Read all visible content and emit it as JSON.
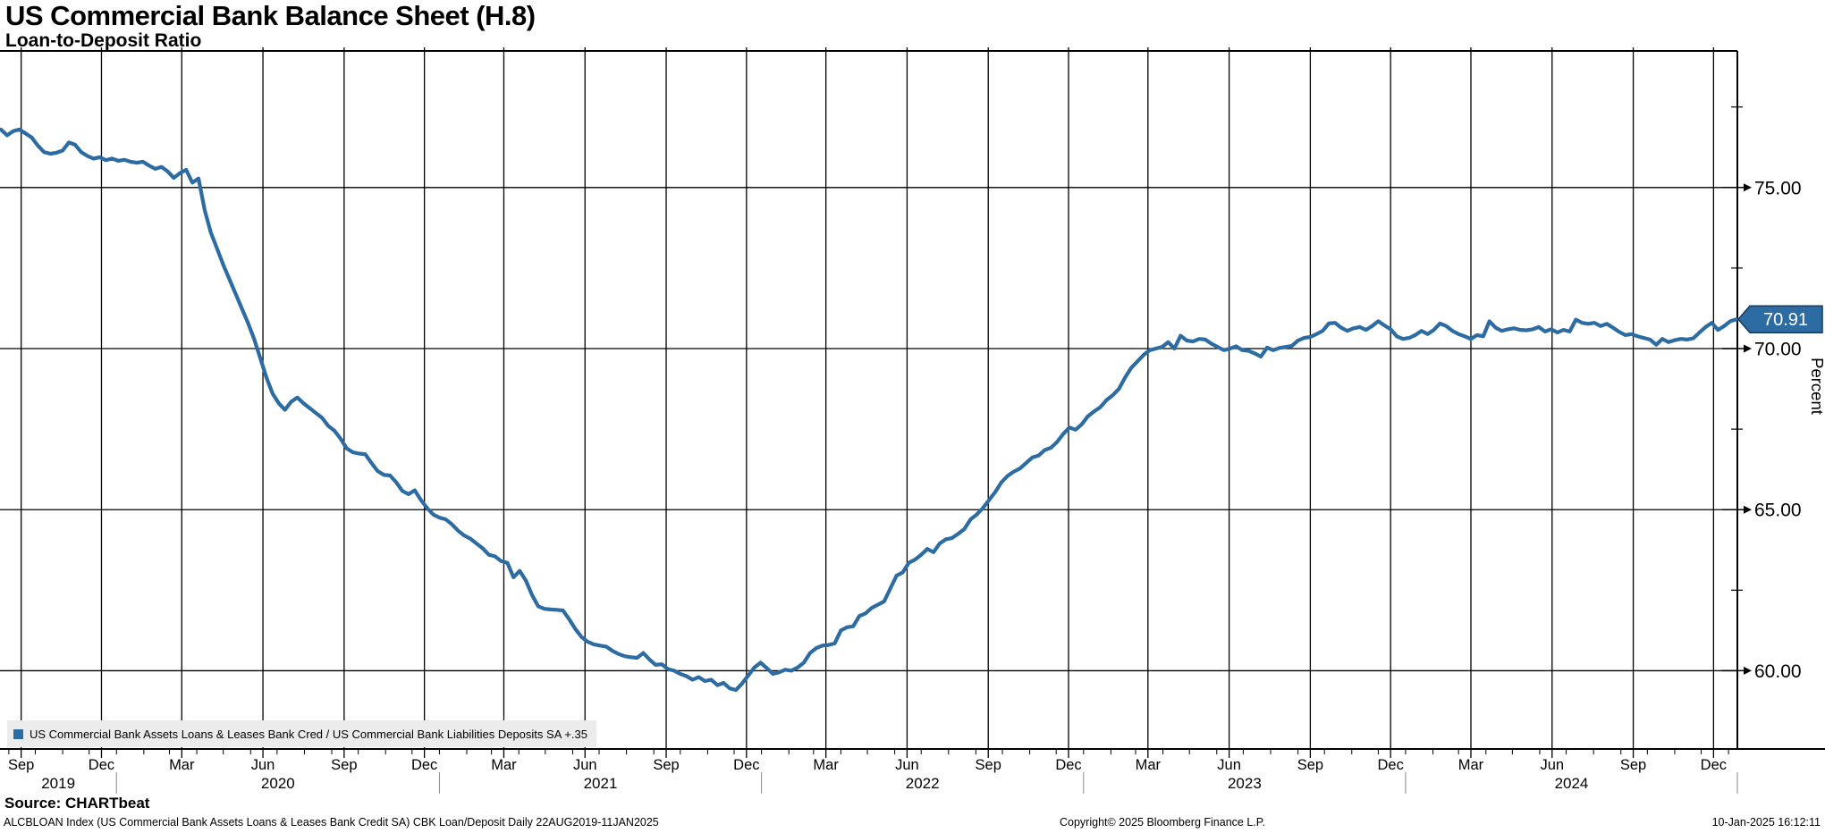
{
  "header": {
    "title": "US Commercial Bank Balance Sheet (H.8)",
    "subtitle": "Loan-to-Deposit Ratio"
  },
  "legend": {
    "label": "US Commercial Bank Assets Loans & Leases Bank Cred / US Commercial Bank Liabilities Deposits SA +.35",
    "marker_color": "#2d6ba3"
  },
  "footer": {
    "source": "Source: CHARTbeat",
    "ticker_line": "ALCBLOAN Index (US Commercial Bank Assets Loans & Leases Bank Credit SA) CBK Loan/Deposit  Daily 22AUG2019-11JAN2025",
    "copyright": "Copyright© 2025 Bloomberg Finance L.P.",
    "timestamp": "10-Jan-2025 16:12:11"
  },
  "chart_data": {
    "type": "line",
    "title": "US Commercial Bank Balance Sheet (H.8) - Loan-to-Deposit Ratio",
    "ylabel": "Percent",
    "grid": true,
    "legend_position": "bottom-left",
    "line_color": "#2d6ba3",
    "last_value": "70.91",
    "ylim": [
      57.57,
      79.24
    ],
    "yticks": [
      {
        "value": 75,
        "label": "75.00"
      },
      {
        "value": 70,
        "label": "70.00"
      },
      {
        "value": 65,
        "label": "65.00"
      },
      {
        "value": 60,
        "label": "60.00"
      }
    ],
    "yticks_minor": [
      77.5,
      72.5,
      67.5,
      62.5
    ],
    "x_axis": {
      "start_date": "2019-08-22",
      "end_date": "2025-01-11",
      "quarter_ticks": [
        {
          "label": "Sep",
          "date": "2019-09-15"
        },
        {
          "label": "Dec",
          "date": "2019-12-15"
        },
        {
          "label": "Mar",
          "date": "2020-03-15"
        },
        {
          "label": "Jun",
          "date": "2020-06-15"
        },
        {
          "label": "Sep",
          "date": "2020-09-15"
        },
        {
          "label": "Dec",
          "date": "2020-12-15"
        },
        {
          "label": "Mar",
          "date": "2021-03-15"
        },
        {
          "label": "Jun",
          "date": "2021-06-15"
        },
        {
          "label": "Sep",
          "date": "2021-09-15"
        },
        {
          "label": "Dec",
          "date": "2021-12-15"
        },
        {
          "label": "Mar",
          "date": "2022-03-15"
        },
        {
          "label": "Jun",
          "date": "2022-06-15"
        },
        {
          "label": "Sep",
          "date": "2022-09-15"
        },
        {
          "label": "Dec",
          "date": "2022-12-15"
        },
        {
          "label": "Mar",
          "date": "2023-03-15"
        },
        {
          "label": "Jun",
          "date": "2023-06-15"
        },
        {
          "label": "Sep",
          "date": "2023-09-15"
        },
        {
          "label": "Dec",
          "date": "2023-12-15"
        },
        {
          "label": "Mar",
          "date": "2024-03-15"
        },
        {
          "label": "Jun",
          "date": "2024-06-15"
        },
        {
          "label": "Sep",
          "date": "2024-09-15"
        },
        {
          "label": "Dec",
          "date": "2024-12-15"
        }
      ],
      "years": [
        {
          "label": "2019",
          "from": "2019-08-22",
          "to": "2020-01-01"
        },
        {
          "label": "2020",
          "from": "2020-01-01",
          "to": "2021-01-01"
        },
        {
          "label": "2021",
          "from": "2021-01-01",
          "to": "2022-01-01"
        },
        {
          "label": "2022",
          "from": "2022-01-01",
          "to": "2023-01-01"
        },
        {
          "label": "2023",
          "from": "2023-01-01",
          "to": "2024-01-01"
        },
        {
          "label": "2024",
          "from": "2024-01-01",
          "to": "2025-01-11"
        }
      ]
    },
    "series": [
      {
        "name": "US Commercial Bank Assets Loans & Leases Bank Cred / US Commercial Bank Liabilities Deposits SA +.35",
        "color": "#2d6ba3",
        "start_date": "2019-08-23",
        "step_days": 7,
        "values": [
          76.8,
          76.62,
          76.75,
          76.8,
          76.68,
          76.55,
          76.3,
          76.1,
          76.05,
          76.08,
          76.15,
          76.4,
          76.33,
          76.1,
          75.98,
          75.9,
          75.94,
          75.85,
          75.9,
          75.83,
          75.86,
          75.8,
          75.77,
          75.8,
          75.68,
          75.58,
          75.64,
          75.5,
          75.3,
          75.45,
          75.55,
          75.15,
          75.28,
          74.3,
          73.6,
          73.1,
          72.6,
          72.15,
          71.7,
          71.25,
          70.8,
          70.3,
          69.7,
          69.1,
          68.6,
          68.3,
          68.1,
          68.35,
          68.48,
          68.3,
          68.15,
          68.0,
          67.85,
          67.6,
          67.45,
          67.2,
          66.9,
          66.78,
          66.74,
          66.72,
          66.45,
          66.2,
          66.08,
          66.06,
          65.85,
          65.58,
          65.48,
          65.6,
          65.3,
          65.05,
          64.85,
          64.75,
          64.7,
          64.55,
          64.35,
          64.2,
          64.1,
          63.95,
          63.8,
          63.6,
          63.55,
          63.4,
          63.35,
          62.9,
          63.1,
          62.8,
          62.35,
          62.0,
          61.92,
          61.9,
          61.89,
          61.87,
          61.6,
          61.3,
          61.05,
          60.9,
          60.82,
          60.78,
          60.75,
          60.62,
          60.52,
          60.45,
          60.42,
          60.4,
          60.55,
          60.35,
          60.18,
          60.2,
          60.05,
          60.0,
          59.9,
          59.83,
          59.72,
          59.8,
          59.68,
          59.72,
          59.55,
          59.62,
          59.45,
          59.4,
          59.6,
          59.85,
          60.1,
          60.25,
          60.08,
          59.9,
          59.95,
          60.03,
          60.0,
          60.1,
          60.25,
          60.55,
          60.7,
          60.78,
          60.8,
          60.85,
          61.25,
          61.35,
          61.38,
          61.7,
          61.78,
          61.95,
          62.05,
          62.15,
          62.55,
          62.95,
          63.05,
          63.35,
          63.45,
          63.6,
          63.78,
          63.68,
          63.95,
          64.08,
          64.12,
          64.25,
          64.4,
          64.7,
          64.85,
          65.05,
          65.3,
          65.55,
          65.85,
          66.05,
          66.18,
          66.28,
          66.45,
          66.62,
          66.68,
          66.85,
          66.92,
          67.1,
          67.35,
          67.55,
          67.48,
          67.65,
          67.9,
          68.05,
          68.18,
          68.4,
          68.55,
          68.75,
          69.1,
          69.4,
          69.6,
          69.8,
          69.95,
          70.0,
          70.05,
          70.2,
          70.0,
          70.4,
          70.25,
          70.22,
          70.3,
          70.28,
          70.15,
          70.05,
          69.95,
          70.0,
          70.07,
          69.95,
          69.93,
          69.85,
          69.75,
          70.03,
          69.95,
          70.02,
          70.05,
          70.08,
          70.25,
          70.33,
          70.36,
          70.45,
          70.55,
          70.78,
          70.8,
          70.65,
          70.55,
          70.63,
          70.67,
          70.58,
          70.7,
          70.85,
          70.72,
          70.6,
          70.38,
          70.3,
          70.33,
          70.42,
          70.55,
          70.45,
          70.58,
          70.78,
          70.7,
          70.55,
          70.45,
          70.38,
          70.3,
          70.42,
          70.38,
          70.85,
          70.65,
          70.55,
          70.6,
          70.63,
          70.58,
          70.57,
          70.6,
          70.67,
          70.53,
          70.6,
          70.5,
          70.58,
          70.53,
          70.9,
          70.8,
          70.77,
          70.8,
          70.7,
          70.77,
          70.65,
          70.52,
          70.42,
          70.45,
          70.38,
          70.33,
          70.28,
          70.12,
          70.3,
          70.2,
          70.26,
          70.3,
          70.28,
          70.32,
          70.5,
          70.67,
          70.8,
          70.58,
          70.7,
          70.85,
          70.91
        ]
      }
    ]
  }
}
